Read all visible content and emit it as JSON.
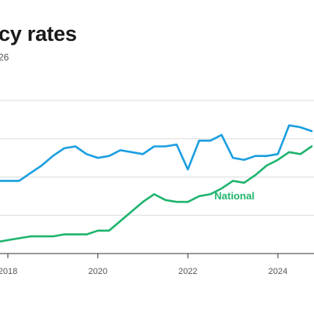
{
  "title": "cy rates",
  "subtitle": "26",
  "chart_data": {
    "type": "line",
    "x_ticks": [
      "2018",
      "2020",
      "2022",
      "2024"
    ],
    "series": [
      {
        "name": "",
        "color": "#1a9ee0",
        "points": [
          [
            2017.25,
            7.15
          ],
          [
            2017.5,
            6.9
          ],
          [
            2017.75,
            6.9
          ],
          [
            2018.0,
            6.9
          ],
          [
            2018.25,
            6.9
          ],
          [
            2018.5,
            7.1
          ],
          [
            2018.75,
            7.3
          ],
          [
            2019.0,
            7.55
          ],
          [
            2019.25,
            7.75
          ],
          [
            2019.5,
            7.8
          ],
          [
            2019.75,
            7.6
          ],
          [
            2020.0,
            7.5
          ],
          [
            2020.25,
            7.55
          ],
          [
            2020.5,
            7.7
          ],
          [
            2020.75,
            7.65
          ],
          [
            2021.0,
            7.6
          ],
          [
            2021.25,
            7.8
          ],
          [
            2021.5,
            7.8
          ],
          [
            2021.75,
            7.85
          ],
          [
            2022.0,
            7.2
          ],
          [
            2022.25,
            7.95
          ],
          [
            2022.5,
            7.95
          ],
          [
            2022.75,
            8.1
          ],
          [
            2023.0,
            7.5
          ],
          [
            2023.25,
            7.45
          ],
          [
            2023.5,
            7.55
          ],
          [
            2023.75,
            7.55
          ],
          [
            2024.0,
            7.6
          ],
          [
            2024.25,
            8.35
          ],
          [
            2024.5,
            8.3
          ],
          [
            2024.75,
            8.2
          ]
        ]
      },
      {
        "name": "National",
        "color": "#1fb46e",
        "points": [
          [
            2017.25,
            5.2
          ],
          [
            2017.5,
            5.25
          ],
          [
            2017.75,
            5.3
          ],
          [
            2018.0,
            5.35
          ],
          [
            2018.25,
            5.4
          ],
          [
            2018.5,
            5.45
          ],
          [
            2018.75,
            5.45
          ],
          [
            2019.0,
            5.45
          ],
          [
            2019.25,
            5.5
          ],
          [
            2019.5,
            5.5
          ],
          [
            2019.75,
            5.5
          ],
          [
            2020.0,
            5.6
          ],
          [
            2020.25,
            5.6
          ],
          [
            2020.5,
            5.85
          ],
          [
            2020.75,
            6.1
          ],
          [
            2021.0,
            6.35
          ],
          [
            2021.25,
            6.55
          ],
          [
            2021.5,
            6.4
          ],
          [
            2021.75,
            6.35
          ],
          [
            2022.0,
            6.35
          ],
          [
            2022.25,
            6.5
          ],
          [
            2022.5,
            6.55
          ],
          [
            2022.75,
            6.7
          ],
          [
            2023.0,
            6.9
          ],
          [
            2023.25,
            6.85
          ],
          [
            2023.5,
            7.05
          ],
          [
            2023.75,
            7.3
          ],
          [
            2024.0,
            7.45
          ],
          [
            2024.25,
            7.65
          ],
          [
            2024.5,
            7.6
          ],
          [
            2024.75,
            7.8
          ]
        ]
      }
    ],
    "xlim": [
      2017.25,
      2024.8
    ],
    "ylim": [
      5,
      9
    ],
    "grid": true
  }
}
